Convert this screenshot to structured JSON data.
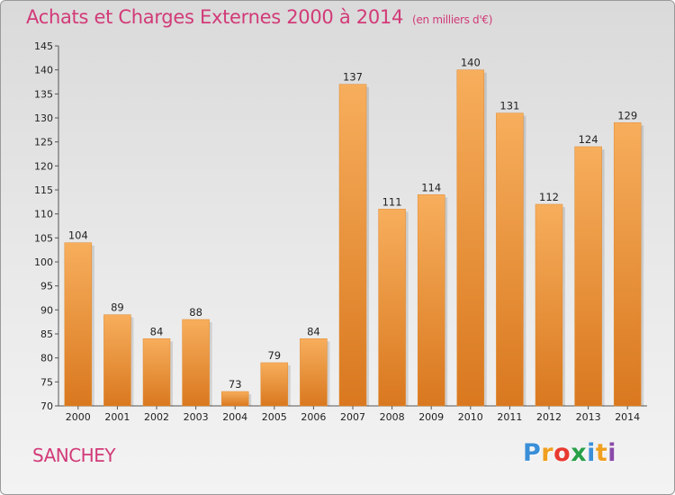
{
  "header": {
    "title": "Achats et Charges Externes 2000 à 2014",
    "subtitle": "(en milliers d'€)"
  },
  "footer": {
    "commune": "SANCHEY",
    "logo_letters": [
      "P",
      "r",
      "o",
      "x",
      "i",
      "t",
      "i"
    ],
    "logo_colors": [
      "#3a8fd8",
      "#f0a020",
      "#e83a30",
      "#28a048",
      "#3a8fd8",
      "#f0a020",
      "#8a4aa8"
    ]
  },
  "colors": {
    "bar_light": "#f7ae5c",
    "bar_dark": "#d9781f",
    "text": "#d23a78"
  },
  "chart_data": {
    "type": "bar",
    "categories": [
      "2000",
      "2001",
      "2002",
      "2003",
      "2004",
      "2005",
      "2006",
      "2007",
      "2008",
      "2009",
      "2010",
      "2011",
      "2012",
      "2013",
      "2014"
    ],
    "values": [
      104,
      89,
      84,
      88,
      73,
      79,
      84,
      137,
      111,
      114,
      140,
      131,
      112,
      124,
      129
    ],
    "ylim": [
      70,
      145
    ],
    "yticks": [
      70,
      75,
      80,
      85,
      90,
      95,
      100,
      105,
      110,
      115,
      120,
      125,
      130,
      135,
      140,
      145
    ],
    "title": "Achats et Charges Externes 2000 à 2014",
    "subtitle": "(en milliers d'€)",
    "grid": false,
    "data_labels": true
  }
}
